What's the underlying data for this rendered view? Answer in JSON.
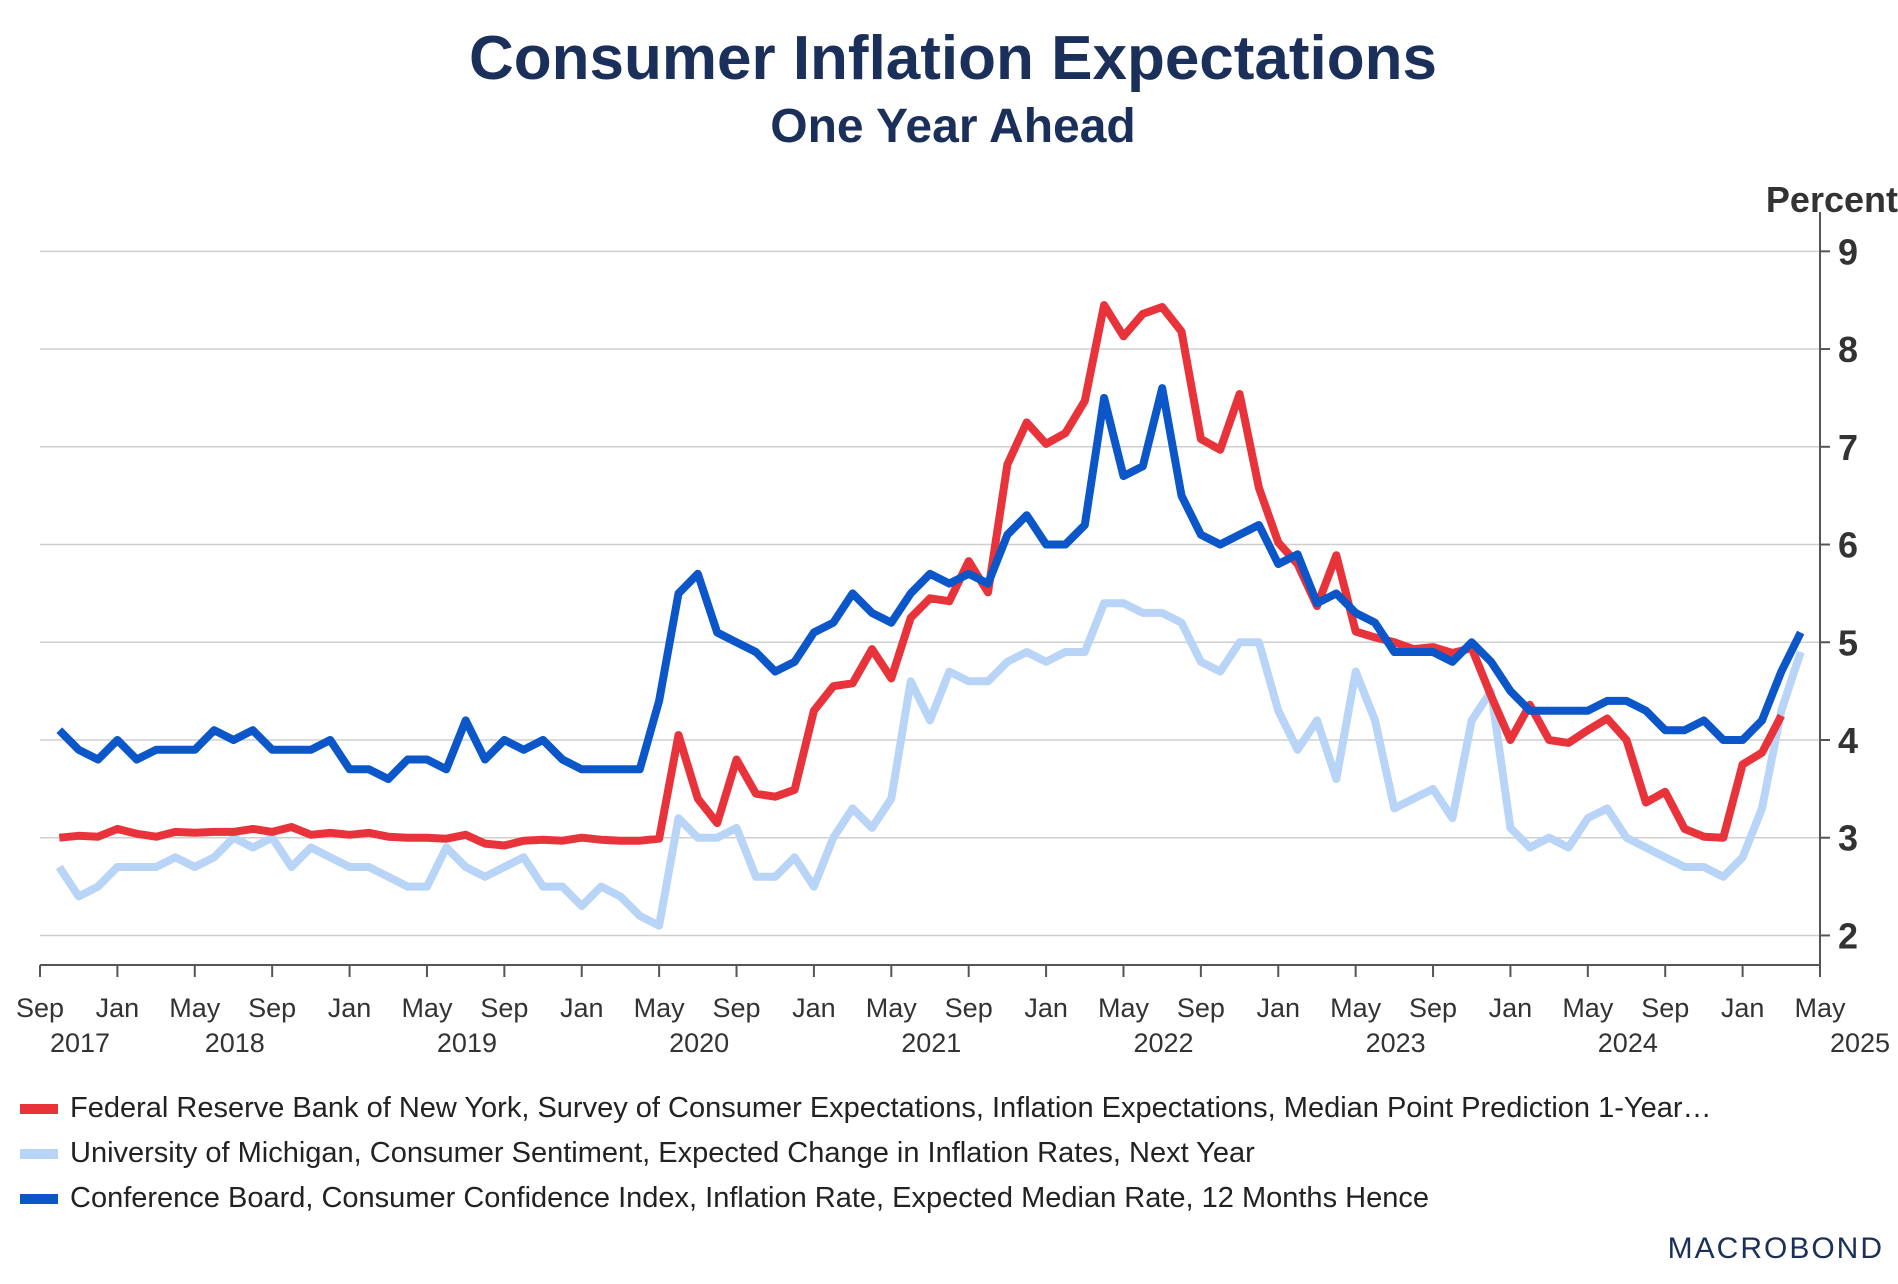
{
  "chart_data": {
    "type": "line",
    "title": "Consumer Inflation Expectations",
    "subtitle": "One Year Ahead",
    "ylabel": "Percent",
    "ylim": [
      1.8,
      9.3
    ],
    "yticks": [
      2,
      3,
      4,
      5,
      6,
      7,
      8,
      9
    ],
    "x_tick_labels": [
      {
        "month": "Sep",
        "year": "2017"
      },
      {
        "month": "Jan",
        "year": ""
      },
      {
        "month": "May",
        "year": "2018"
      },
      {
        "month": "Sep",
        "year": ""
      },
      {
        "month": "Jan",
        "year": ""
      },
      {
        "month": "May",
        "year": "2019"
      },
      {
        "month": "Sep",
        "year": ""
      },
      {
        "month": "Jan",
        "year": ""
      },
      {
        "month": "May",
        "year": "2020"
      },
      {
        "month": "Sep",
        "year": ""
      },
      {
        "month": "Jan",
        "year": ""
      },
      {
        "month": "May",
        "year": "2021"
      },
      {
        "month": "Sep",
        "year": ""
      },
      {
        "month": "Jan",
        "year": ""
      },
      {
        "month": "May",
        "year": "2022"
      },
      {
        "month": "Sep",
        "year": ""
      },
      {
        "month": "Jan",
        "year": ""
      },
      {
        "month": "May",
        "year": "2023"
      },
      {
        "month": "Sep",
        "year": ""
      },
      {
        "month": "Jan",
        "year": ""
      },
      {
        "month": "May",
        "year": "2024"
      },
      {
        "month": "Sep",
        "year": ""
      },
      {
        "month": "Jan",
        "year": ""
      },
      {
        "month": "May",
        "year": "2025"
      }
    ],
    "x_tick_dates": [
      "2017-09",
      "2018-01",
      "2018-05",
      "2018-09",
      "2019-01",
      "2019-05",
      "2019-09",
      "2020-01",
      "2020-05",
      "2020-09",
      "2021-01",
      "2021-05",
      "2021-09",
      "2022-01",
      "2022-05",
      "2022-09",
      "2023-01",
      "2023-05",
      "2023-09",
      "2024-01",
      "2024-05",
      "2024-09",
      "2025-01",
      "2025-05"
    ],
    "x_range": [
      "2017-09",
      "2025-05"
    ],
    "grid": true,
    "legend_position": "bottom",
    "series": [
      {
        "name": "Federal Reserve Bank of New York, Survey of Consumer Expectations, Inflation Expectations, Median Point Prediction 1-Year…",
        "color": "#e8333a",
        "start": "2017-10",
        "values": [
          3.0,
          3.02,
          3.01,
          3.09,
          3.04,
          3.01,
          3.06,
          3.05,
          3.06,
          3.06,
          3.09,
          3.06,
          3.11,
          3.03,
          3.05,
          3.03,
          3.05,
          3.01,
          3.0,
          3.0,
          2.99,
          3.03,
          2.94,
          2.92,
          2.97,
          2.98,
          2.97,
          3.0,
          2.98,
          2.97,
          2.97,
          2.99,
          4.05,
          3.4,
          3.15,
          3.8,
          3.45,
          3.42,
          3.49,
          4.3,
          4.55,
          4.58,
          4.93,
          4.63,
          5.25,
          5.45,
          5.42,
          5.83,
          5.51,
          6.82,
          7.25,
          7.03,
          7.14,
          7.47,
          8.45,
          8.13,
          8.36,
          8.43,
          8.18,
          7.08,
          6.97,
          7.54,
          6.58,
          6.02,
          5.8,
          5.37,
          5.89,
          5.11,
          5.05,
          5.0,
          4.93,
          4.95,
          4.89,
          4.94,
          4.45,
          4.0,
          4.36,
          4.0,
          3.97,
          4.1,
          4.22,
          4.0,
          3.36,
          3.47,
          3.09,
          3.01,
          3.0,
          3.75,
          3.87,
          4.25
        ]
      },
      {
        "name": "University of Michigan, Consumer Sentiment, Expected Change in Inflation Rates, Next Year",
        "color": "#b8d4f7",
        "start": "2017-10",
        "values": [
          2.7,
          2.4,
          2.5,
          2.7,
          2.7,
          2.7,
          2.8,
          2.7,
          2.8,
          3.0,
          2.9,
          3.0,
          2.7,
          2.9,
          2.8,
          2.7,
          2.7,
          2.6,
          2.5,
          2.5,
          2.9,
          2.7,
          2.6,
          2.7,
          2.8,
          2.5,
          2.5,
          2.3,
          2.5,
          2.4,
          2.2,
          2.1,
          3.2,
          3.0,
          3.0,
          3.1,
          2.6,
          2.6,
          2.8,
          2.5,
          3.0,
          3.3,
          3.1,
          3.4,
          4.6,
          4.2,
          4.7,
          4.6,
          4.6,
          4.8,
          4.9,
          4.8,
          4.9,
          4.9,
          5.4,
          5.4,
          5.3,
          5.3,
          5.2,
          4.8,
          4.7,
          5.0,
          5.0,
          4.3,
          3.9,
          4.2,
          3.6,
          4.7,
          4.2,
          3.3,
          3.4,
          3.5,
          3.2,
          4.2,
          4.5,
          3.1,
          2.9,
          3.0,
          2.9,
          3.2,
          3.3,
          3.0,
          2.9,
          2.8,
          2.7,
          2.7,
          2.6,
          2.8,
          3.3,
          4.3,
          4.9
        ]
      },
      {
        "name": "Conference Board, Consumer Confidence Index, Inflation Rate, Expected Median Rate, 12 Months Hence",
        "color": "#0b56c9",
        "start": "2017-10",
        "values": [
          4.1,
          3.9,
          3.8,
          4.0,
          3.8,
          3.9,
          3.9,
          3.9,
          4.1,
          4.0,
          4.1,
          3.9,
          3.9,
          3.9,
          4.0,
          3.7,
          3.7,
          3.6,
          3.8,
          3.8,
          3.7,
          4.2,
          3.8,
          4.0,
          3.9,
          4.0,
          3.8,
          3.7,
          3.7,
          3.7,
          3.7,
          4.4,
          5.5,
          5.7,
          5.1,
          5.0,
          4.9,
          4.7,
          4.8,
          5.1,
          5.2,
          5.5,
          5.3,
          5.2,
          5.5,
          5.7,
          5.6,
          5.7,
          5.6,
          6.1,
          6.3,
          6.0,
          6.0,
          6.2,
          7.5,
          6.7,
          6.8,
          7.6,
          6.5,
          6.1,
          6.0,
          6.1,
          6.2,
          5.8,
          5.9,
          5.4,
          5.5,
          5.3,
          5.2,
          4.9,
          4.9,
          4.9,
          4.8,
          5.0,
          4.8,
          4.5,
          4.3,
          4.3,
          4.3,
          4.3,
          4.4,
          4.4,
          4.3,
          4.1,
          4.1,
          4.2,
          4.0,
          4.0,
          4.2,
          4.7,
          5.1
        ]
      }
    ]
  },
  "branding": {
    "logo_text": "MACROBOND"
  }
}
